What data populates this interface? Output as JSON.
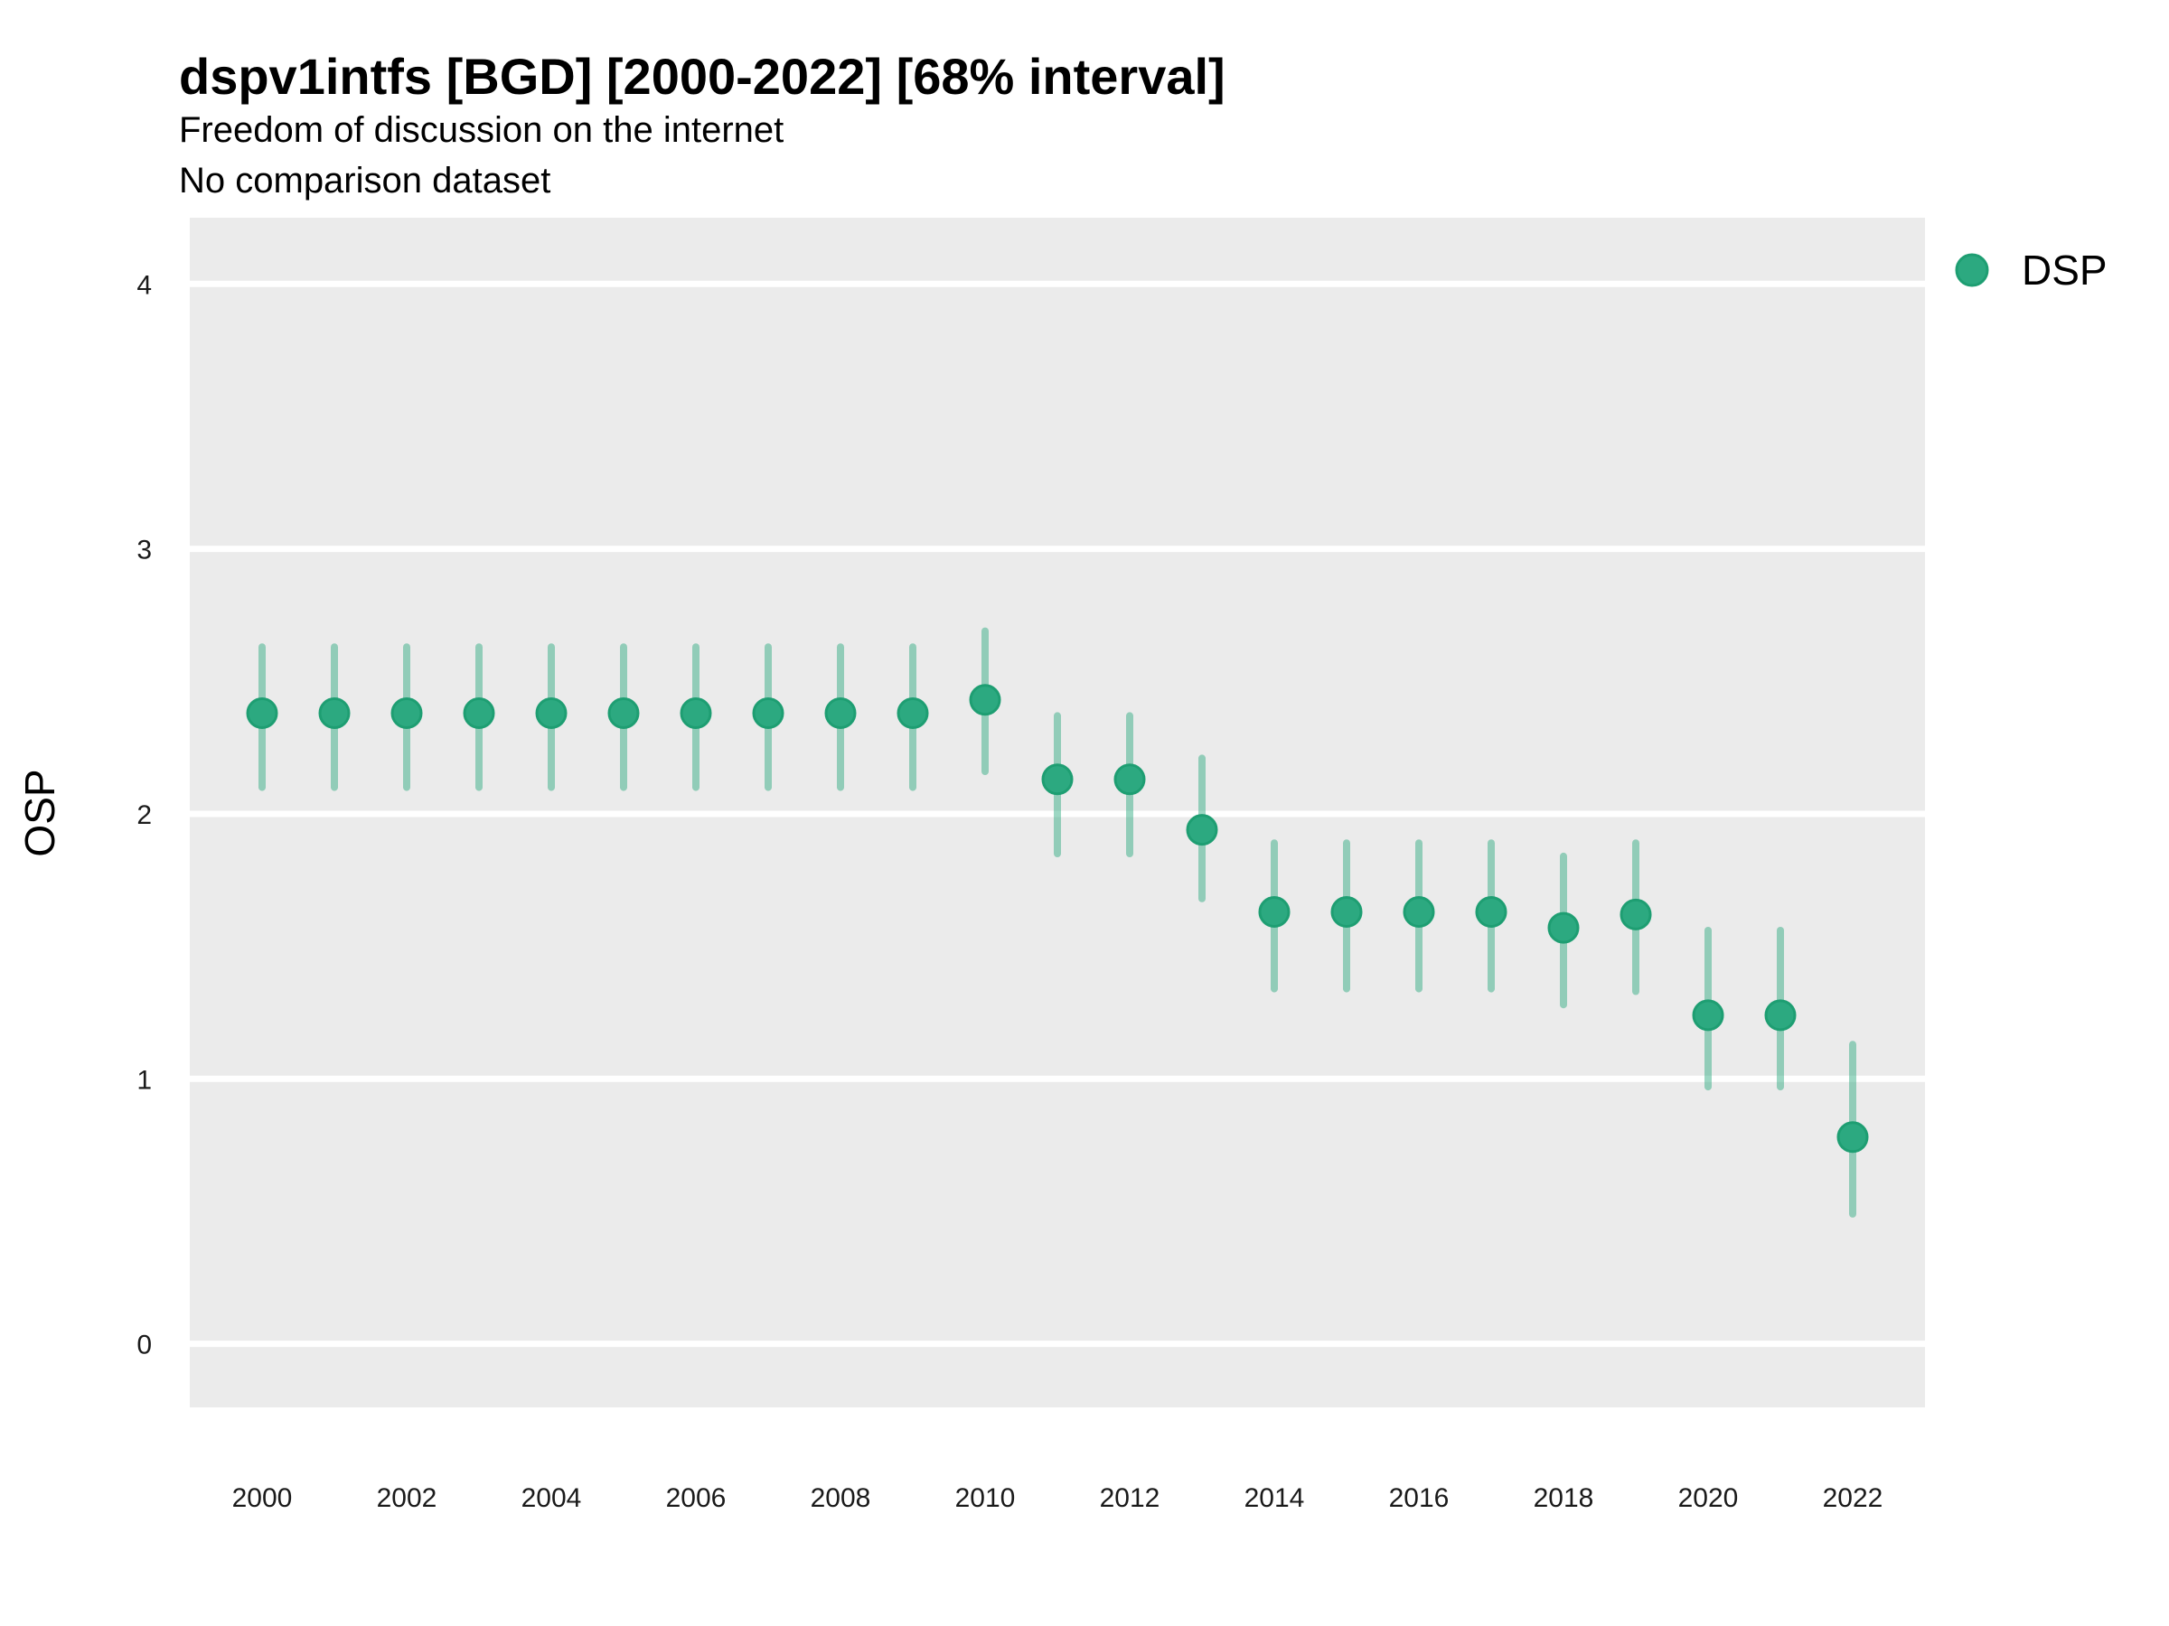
{
  "header": {
    "title": "dspv1intfs [BGD] [2000-2022] [68% interval]",
    "subtitle": "Freedom of discussion on the internet",
    "comparison_note": "No comparison dataset"
  },
  "legend": {
    "position": "right",
    "items": [
      {
        "label": "DSP",
        "color": "#2CA980"
      }
    ]
  },
  "chart_data": {
    "type": "scatter",
    "title": "dspv1intfs [BGD] [2000-2022] [68% interval]",
    "subtitle": "Freedom of discussion on the internet",
    "note": "No comparison dataset",
    "xlabel": "",
    "ylabel": "OSP",
    "interval_level": "68%",
    "x": [
      2000,
      2001,
      2002,
      2003,
      2004,
      2005,
      2006,
      2007,
      2008,
      2009,
      2010,
      2011,
      2012,
      2013,
      2014,
      2015,
      2016,
      2017,
      2018,
      2019,
      2020,
      2021,
      2022
    ],
    "series": [
      {
        "name": "DSP",
        "values": [
          2.38,
          2.38,
          2.38,
          2.38,
          2.38,
          2.38,
          2.38,
          2.38,
          2.38,
          2.38,
          2.43,
          2.13,
          2.13,
          1.94,
          1.63,
          1.63,
          1.63,
          1.63,
          1.57,
          1.62,
          1.24,
          1.24,
          0.78
        ],
        "interval_low": [
          2.1,
          2.1,
          2.1,
          2.1,
          2.1,
          2.1,
          2.1,
          2.1,
          2.1,
          2.1,
          2.16,
          1.85,
          1.85,
          1.68,
          1.34,
          1.34,
          1.34,
          1.34,
          1.28,
          1.33,
          0.97,
          0.97,
          0.49
        ],
        "interval_high": [
          2.63,
          2.63,
          2.63,
          2.63,
          2.63,
          2.63,
          2.63,
          2.63,
          2.63,
          2.63,
          2.69,
          2.37,
          2.37,
          2.21,
          1.89,
          1.89,
          1.89,
          1.89,
          1.84,
          1.89,
          1.56,
          1.56,
          1.13
        ]
      }
    ],
    "xlim": [
      1999,
      2023
    ],
    "ylim": [
      -0.24,
      4.25
    ],
    "xticks": [
      2000,
      2002,
      2004,
      2006,
      2008,
      2010,
      2012,
      2014,
      2016,
      2018,
      2020,
      2022
    ],
    "yticks": [
      0,
      1,
      2,
      3,
      4
    ],
    "grid": "horizontal-major-white-on-grey",
    "legend_position": "right"
  },
  "style": {
    "panel_bg": "#EBEBEB",
    "grid_color": "#FFFFFF",
    "point_fill": "#2CA980",
    "point_stroke": "#1E9E72",
    "interval_color": "rgba(44,169,128,0.47)",
    "tick_label_color": "#1A1A1A",
    "text_color": "#000000"
  }
}
